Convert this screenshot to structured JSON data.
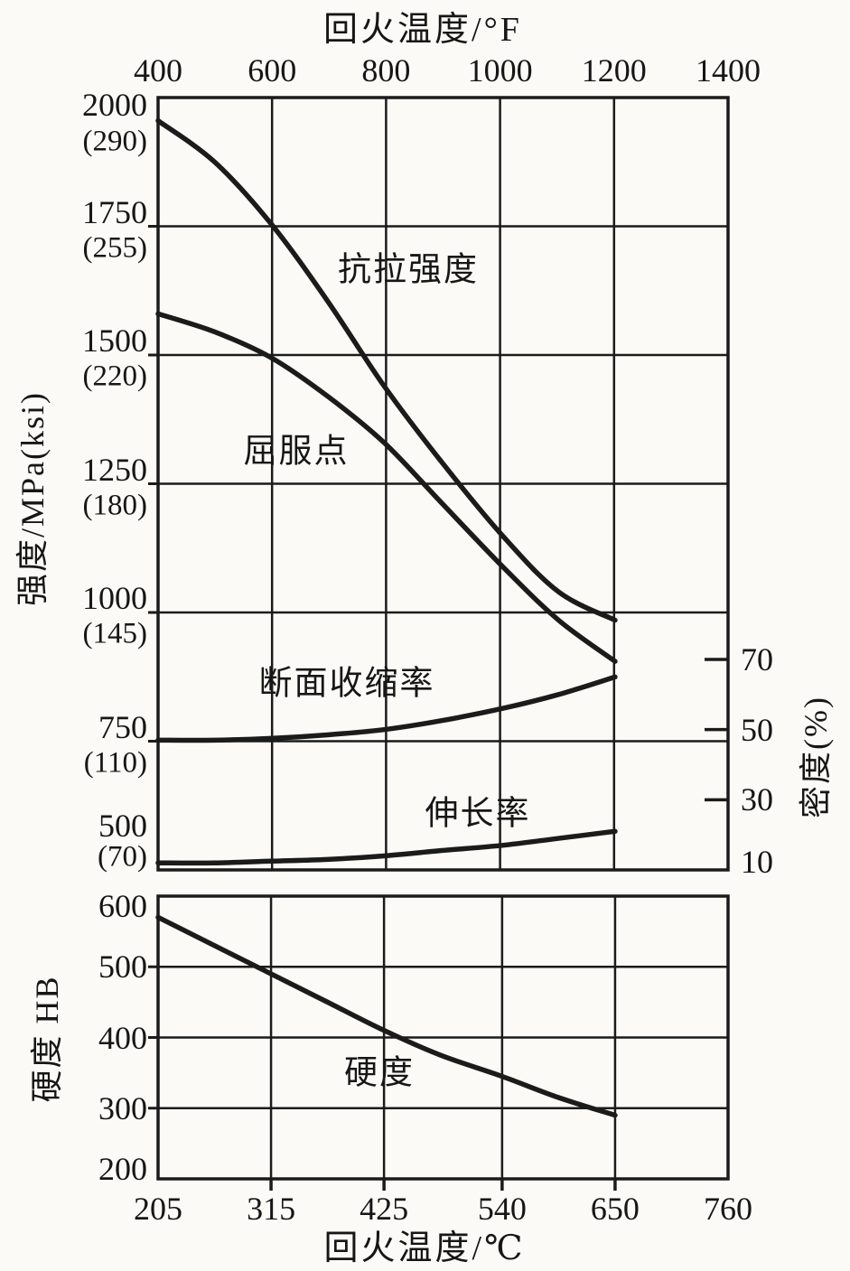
{
  "page": {
    "background": "#fbfaf6",
    "ink": "#1b1b1b"
  },
  "chart_data": [
    {
      "id": "strength-plasticity-vs-tempering",
      "type": "line",
      "grid": true,
      "x_axis_top": {
        "label": "回火温度/°F",
        "range": [
          400,
          1400
        ],
        "ticks": [
          "400",
          "600",
          "800",
          "1000",
          "1200",
          "1400"
        ]
      },
      "x_range_c": [
        205,
        760
      ],
      "y_axis_left": {
        "label": "强度/MPa(ksi)",
        "range": [
          500,
          2000
        ],
        "ticks": [
          {
            "mpa": "2000",
            "ksi": "(290)"
          },
          {
            "mpa": "1750",
            "ksi": "(255)"
          },
          {
            "mpa": "1500",
            "ksi": "(220)"
          },
          {
            "mpa": "1250",
            "ksi": "(180)"
          },
          {
            "mpa": "1000",
            "ksi": "(145)"
          },
          {
            "mpa": "750",
            "ksi": "(110)"
          },
          {
            "mpa": "500",
            "ksi": "(70)"
          }
        ]
      },
      "y_axis_right": {
        "label": "密度(%)",
        "range": [
          10,
          70
        ],
        "ticks": [
          "70",
          "50",
          "30",
          "10"
        ]
      },
      "series": [
        {
          "name": "抗拉强度",
          "axis": "left",
          "unit": "MPa",
          "x_c": [
            205,
            260,
            315,
            370,
            425,
            480,
            540,
            595,
            650
          ],
          "y": [
            1955,
            1875,
            1755,
            1605,
            1440,
            1295,
            1150,
            1040,
            985
          ]
        },
        {
          "name": "屈服点",
          "axis": "left",
          "unit": "MPa",
          "x_c": [
            205,
            260,
            315,
            370,
            425,
            480,
            540,
            595,
            650
          ],
          "y": [
            1580,
            1545,
            1495,
            1420,
            1330,
            1215,
            1090,
            985,
            905
          ]
        },
        {
          "name": "断面收缩率",
          "axis": "right",
          "unit": "%",
          "x_c": [
            205,
            260,
            315,
            370,
            425,
            480,
            540,
            595,
            650
          ],
          "y": [
            47,
            47,
            47.5,
            48.5,
            50,
            52.5,
            56,
            60,
            65
          ]
        },
        {
          "name": "伸长率",
          "axis": "right",
          "unit": "%",
          "x_c": [
            205,
            260,
            315,
            370,
            425,
            480,
            540,
            595,
            650
          ],
          "y": [
            12,
            12,
            12.5,
            13,
            14,
            15.5,
            17,
            19,
            21
          ]
        }
      ]
    },
    {
      "id": "hardness-vs-tempering",
      "type": "line",
      "grid": true,
      "x_axis_bottom": {
        "label": "回火温度/℃",
        "range": [
          205,
          760
        ],
        "ticks": [
          "205",
          "315",
          "425",
          "540",
          "650",
          "760"
        ]
      },
      "y_axis_left": {
        "label": "硬度 HB",
        "range": [
          200,
          600
        ],
        "ticks": [
          "600",
          "500",
          "400",
          "300",
          "200"
        ]
      },
      "series": [
        {
          "name": "硬度",
          "axis": "left",
          "unit": "HB",
          "x_c": [
            205,
            260,
            315,
            370,
            425,
            480,
            540,
            595,
            650
          ],
          "y": [
            570,
            530,
            490,
            450,
            410,
            375,
            345,
            315,
            290
          ]
        }
      ]
    }
  ]
}
